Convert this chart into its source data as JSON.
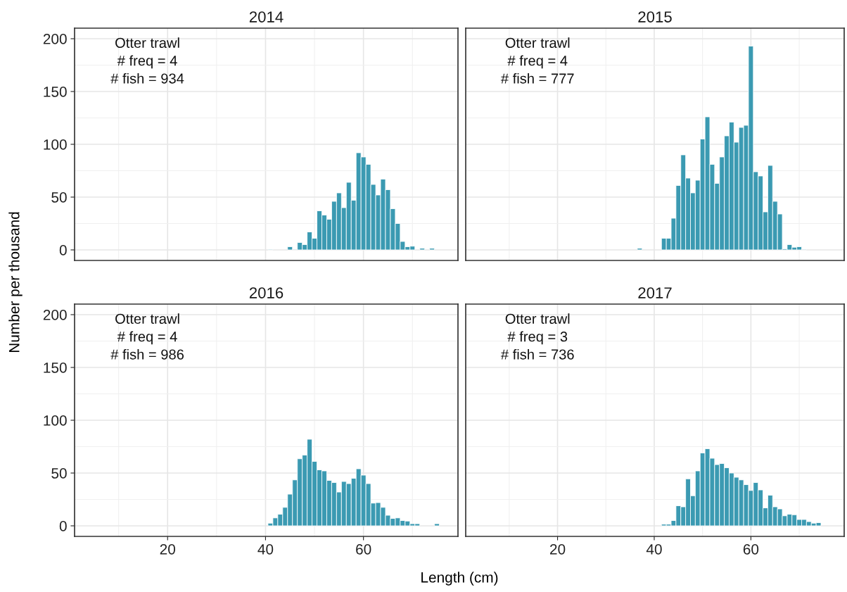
{
  "chart_data": [
    {
      "type": "histogram",
      "title": "2014",
      "ylabel": "Number per thousand",
      "annotations": [
        "Otter trawl",
        "# freq = 4",
        "# fish = 934"
      ],
      "color": "#3b9ab2",
      "tick_labels": "y",
      "grid": true,
      "xlim": [
        1,
        79.3
      ],
      "xticks": [
        20,
        40,
        60
      ],
      "ylim": [
        -10,
        210
      ],
      "yticks": [
        0,
        50,
        100,
        150,
        200
      ],
      "bins": [
        40.5,
        41.5,
        42.5,
        43.5,
        44.5,
        45.5,
        46.5,
        47.5,
        48.5,
        49.5,
        50.5,
        51.5,
        52.5,
        53.5,
        54.5,
        55.5,
        56.5,
        57.5,
        58.5,
        59.5,
        60.5,
        61.5,
        62.5,
        63.5,
        64.5,
        65.5,
        66.5,
        67.5,
        68.5,
        69.5,
        70.5,
        71.5,
        72.5,
        73.5,
        74.5
      ],
      "values": [
        0.5,
        0,
        0,
        0,
        3,
        0.5,
        7,
        5,
        17,
        11,
        37,
        33,
        29,
        46,
        54,
        40,
        64,
        47,
        92,
        88,
        81,
        62,
        52,
        67,
        57,
        39,
        25,
        8,
        3,
        3.5,
        0,
        1.5,
        0,
        1.5
      ]
    },
    {
      "type": "histogram",
      "title": "2015",
      "annotations": [
        "Otter trawl",
        "# freq = 4",
        "# fish = 777"
      ],
      "color": "#3b9ab2",
      "tick_labels": false,
      "grid": true,
      "xlim": [
        1,
        79.3
      ],
      "xticks": [
        20,
        40,
        60
      ],
      "ylim": [
        -10,
        210
      ],
      "yticks": [
        0,
        50,
        100,
        150,
        200
      ],
      "bins": [
        36.5,
        37.5,
        38.5,
        39.5,
        40.5,
        41.5,
        42.5,
        43.5,
        44.5,
        45.5,
        46.5,
        47.5,
        48.5,
        49.5,
        50.5,
        51.5,
        52.5,
        53.5,
        54.5,
        55.5,
        56.5,
        57.5,
        58.5,
        59.5,
        60.5,
        61.5,
        62.5,
        63.5,
        64.5,
        65.5,
        66.5,
        67.5,
        68.5,
        69.5,
        70.5,
        71.5
      ],
      "values": [
        1.5,
        0,
        0,
        0,
        0,
        11,
        11,
        30,
        61,
        90,
        68,
        54,
        66,
        105,
        126,
        81,
        63,
        88,
        108,
        121,
        102,
        116,
        118,
        193,
        74,
        70,
        36,
        80,
        46,
        34,
        1,
        5,
        2.5,
        3,
        0.5
      ]
    },
    {
      "type": "histogram",
      "title": "2016",
      "annotations": [
        "Otter trawl",
        "# freq = 4",
        "# fish = 986"
      ],
      "color": "#3b9ab2",
      "grid": true,
      "xlim": [
        1,
        79.3
      ],
      "xticks": [
        20,
        40,
        60
      ],
      "ylim": [
        -10,
        210
      ],
      "yticks": [
        0,
        50,
        100,
        150,
        200
      ],
      "bins": [
        40.5,
        41.5,
        42.5,
        43.5,
        44.5,
        45.5,
        46.5,
        47.5,
        48.5,
        49.5,
        50.5,
        51.5,
        52.5,
        53.5,
        54.5,
        55.5,
        56.5,
        57.5,
        58.5,
        59.5,
        60.5,
        61.5,
        62.5,
        63.5,
        64.5,
        65.5,
        66.5,
        67.5,
        68.5,
        69.5,
        70.5,
        71.5,
        72.5,
        73.5,
        74.5,
        75.5
      ],
      "values": [
        2.5,
        7.5,
        11,
        17.5,
        30,
        43.5,
        63.5,
        67,
        82,
        61,
        53,
        52,
        43,
        41,
        32,
        42,
        40,
        45,
        54,
        48,
        40,
        21.5,
        22,
        17.5,
        10,
        7,
        7.5,
        5,
        4.5,
        2,
        2,
        0,
        0,
        0,
        2
      ]
    },
    {
      "type": "histogram",
      "title": "2017",
      "xlabel": "Length (cm)",
      "annotations": [
        "Otter trawl",
        "# freq = 3",
        "# fish = 736"
      ],
      "color": "#3b9ab2",
      "tick_labels": "x",
      "grid": true,
      "xlim": [
        1,
        79.3
      ],
      "xticks": [
        20,
        40,
        60
      ],
      "ylim": [
        -10,
        210
      ],
      "yticks": [
        0,
        50,
        100,
        150,
        200
      ],
      "bins": [
        41.5,
        42.5,
        43.5,
        44.5,
        45.5,
        46.5,
        47.5,
        48.5,
        49.5,
        50.5,
        51.5,
        52.5,
        53.5,
        54.5,
        55.5,
        56.5,
        57.5,
        58.5,
        59.5,
        60.5,
        61.5,
        62.5,
        63.5,
        64.5,
        65.5,
        66.5,
        67.5,
        68.5,
        69.5,
        70.5,
        71.5,
        72.5,
        73.5,
        74.5
      ],
      "values": [
        1.5,
        1.5,
        5,
        19,
        18,
        44.5,
        28.5,
        52,
        69,
        73,
        64,
        58,
        59,
        55,
        50,
        46,
        43.5,
        39,
        33.5,
        41,
        34,
        17,
        29,
        18,
        16,
        9.5,
        11,
        10.5,
        6,
        6,
        4,
        2.5,
        3
      ]
    }
  ]
}
